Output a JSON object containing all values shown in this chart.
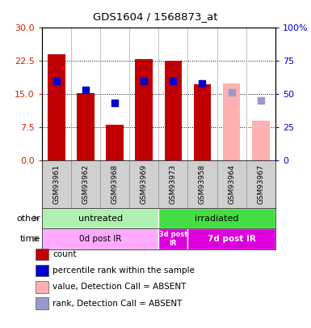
{
  "title": "GDS1604 / 1568873_at",
  "samples": [
    "GSM93961",
    "GSM93962",
    "GSM93968",
    "GSM93969",
    "GSM93973",
    "GSM93958",
    "GSM93964",
    "GSM93967"
  ],
  "bar_values": [
    24.0,
    15.2,
    8.0,
    23.0,
    22.5,
    17.3,
    null,
    null
  ],
  "bar_absent_values": [
    null,
    null,
    null,
    null,
    null,
    null,
    17.5,
    9.0
  ],
  "dot_values": [
    18.0,
    16.0,
    13.0,
    18.0,
    18.0,
    17.5,
    null,
    null
  ],
  "dot_absent_values": [
    null,
    null,
    null,
    null,
    null,
    null,
    15.5,
    13.5
  ],
  "bar_color": "#c00000",
  "bar_absent_color": "#ffb0b0",
  "dot_color": "#0000cc",
  "dot_absent_color": "#9999cc",
  "ylim_left": [
    0,
    30
  ],
  "yticks_left": [
    0,
    7.5,
    15,
    22.5,
    30
  ],
  "ylim_right": [
    0,
    100
  ],
  "yticks_right": [
    0,
    25,
    50,
    75,
    100
  ],
  "tick_color_left": "#cc2200",
  "tick_color_right": "#0000cc",
  "group_other": [
    {
      "label": "untreated",
      "start": 0,
      "end": 4,
      "color": "#b0f0b0"
    },
    {
      "label": "irradiated",
      "start": 4,
      "end": 8,
      "color": "#44dd44"
    }
  ],
  "group_time": [
    {
      "label": "0d post IR",
      "start": 0,
      "end": 4,
      "color": "#ffaaff"
    },
    {
      "label": "3d post\nIR",
      "start": 4,
      "end": 5,
      "color": "#dd00dd"
    },
    {
      "label": "7d post IR",
      "start": 5,
      "end": 8,
      "color": "#dd00dd"
    }
  ],
  "legend_items": [
    {
      "label": "count",
      "color": "#c00000"
    },
    {
      "label": "percentile rank within the sample",
      "color": "#0000cc"
    },
    {
      "label": "value, Detection Call = ABSENT",
      "color": "#ffb0b0"
    },
    {
      "label": "rank, Detection Call = ABSENT",
      "color": "#9999cc"
    }
  ],
  "other_label": "other",
  "time_label": "time"
}
